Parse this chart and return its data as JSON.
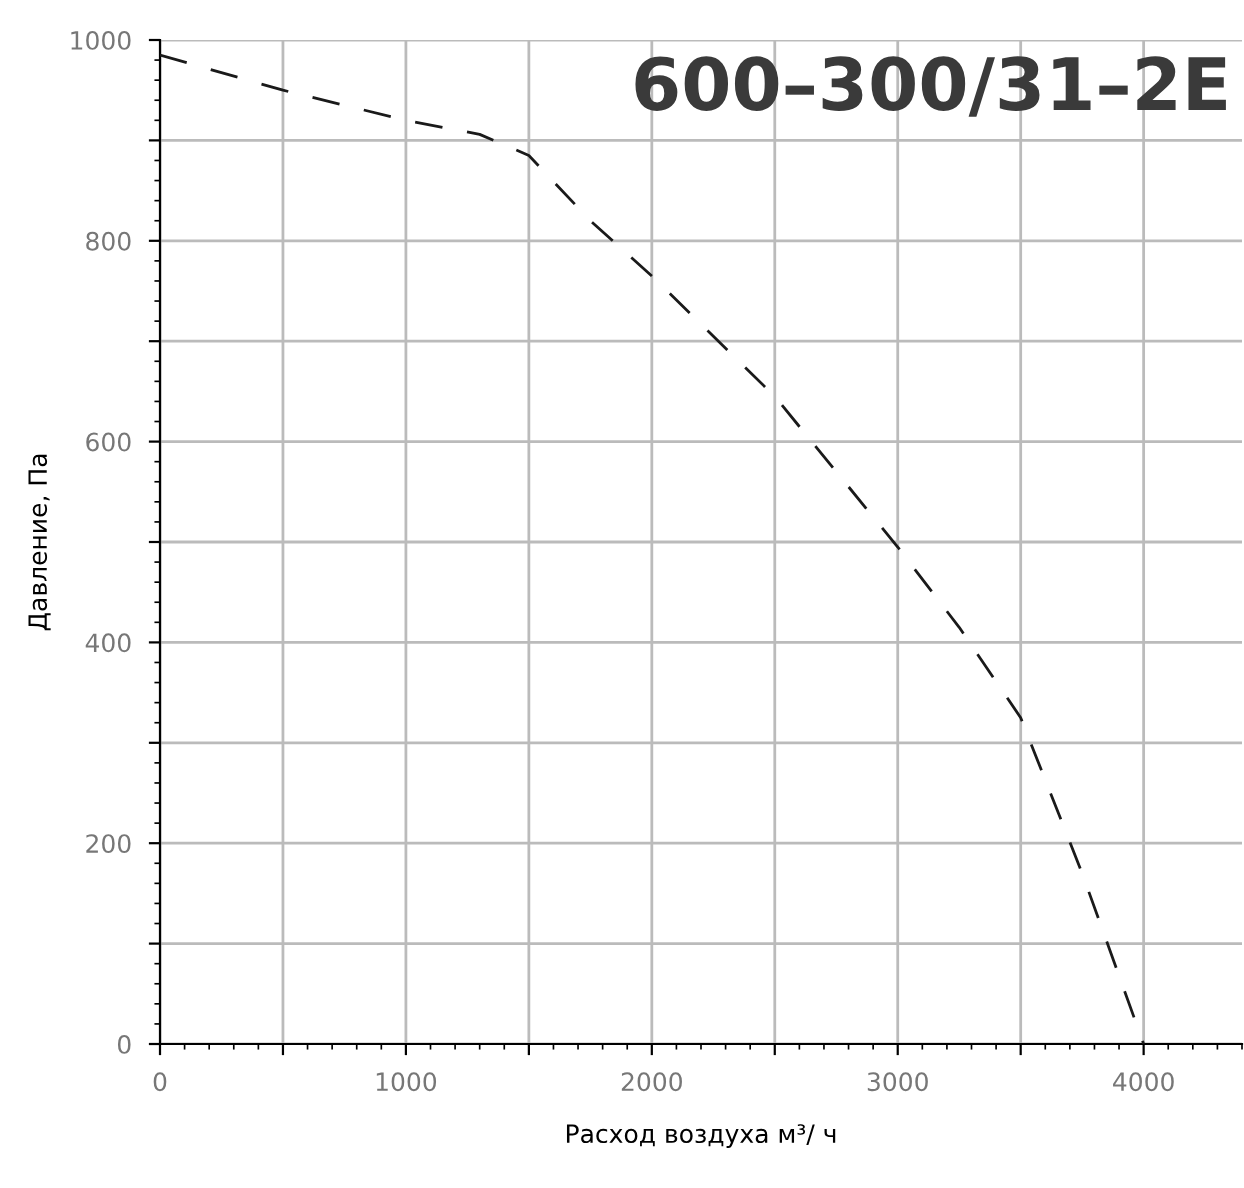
{
  "chart_data": {
    "type": "line",
    "title": "600–300/31–2E",
    "xlabel": "Расход воздуха м³/ ч",
    "ylabel": "Давление, Па",
    "x": [
      0,
      500,
      1000,
      1300,
      1500,
      1750,
      2000,
      2500,
      3000,
      3250,
      3500,
      3750,
      4000
    ],
    "series": [
      {
        "color": "#1a1a1a",
        "values": [
          985,
          950,
          920,
          906,
          885,
          820,
          765,
          645,
          495,
          415,
          325,
          170,
          0
        ]
      }
    ],
    "line_style": "dashed",
    "marker": "none",
    "xlim": [
      0,
      4400
    ],
    "ylim": [
      0,
      1000
    ],
    "xticks": [
      0,
      {
        "value": 500,
        "label": null
      },
      1000,
      {
        "value": 1500,
        "label": null
      },
      2000,
      {
        "value": 2500,
        "label": null
      },
      3000,
      {
        "value": 3500,
        "label": null
      },
      4000
    ],
    "yticks": [
      0,
      {
        "value": 100,
        "label": null
      },
      200,
      {
        "value": 300,
        "label": null
      },
      400,
      {
        "value": 500,
        "label": null
      },
      600,
      {
        "value": 700,
        "label": null
      },
      800,
      {
        "value": 900,
        "label": null
      },
      1000
    ],
    "grid": true,
    "legend": false
  }
}
